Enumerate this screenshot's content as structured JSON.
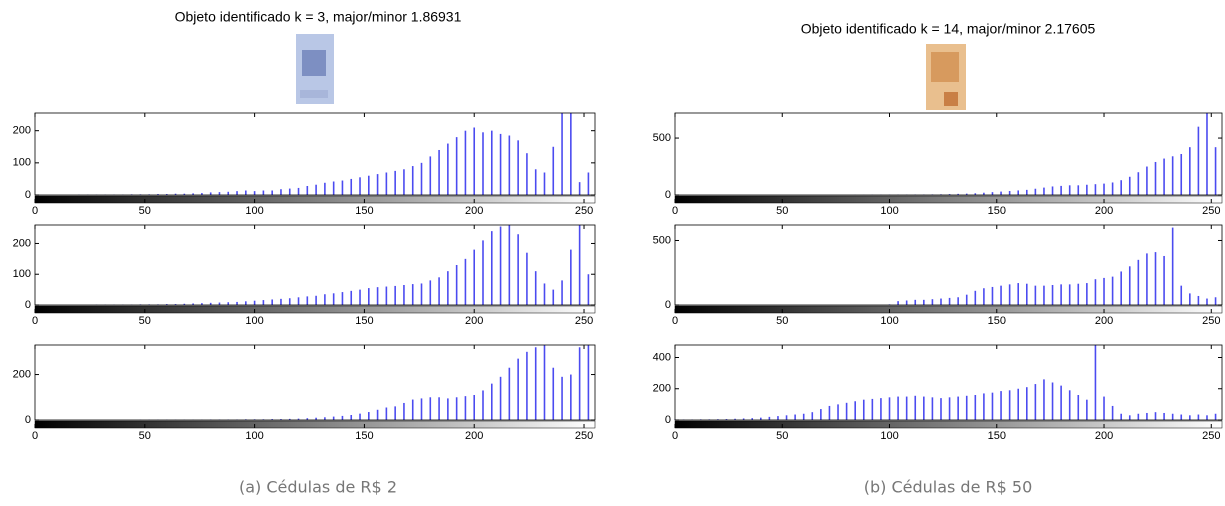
{
  "chart_data": [
    {
      "type": "stem",
      "title": "Objeto identificado k = 3, major/minor 1.86931",
      "color": "#4b4bf0",
      "xlim": [
        0,
        255
      ],
      "ylim": [
        0,
        255
      ],
      "xticks": [
        0,
        50,
        100,
        150,
        200,
        250
      ],
      "yticks": [
        0,
        100,
        200
      ],
      "x": [
        0,
        4,
        8,
        12,
        16,
        20,
        24,
        28,
        32,
        36,
        40,
        44,
        48,
        52,
        56,
        60,
        64,
        68,
        72,
        76,
        80,
        84,
        88,
        92,
        96,
        100,
        104,
        108,
        112,
        116,
        120,
        124,
        128,
        132,
        136,
        140,
        144,
        148,
        152,
        156,
        160,
        164,
        168,
        172,
        176,
        180,
        184,
        188,
        192,
        196,
        200,
        204,
        208,
        212,
        216,
        220,
        224,
        228,
        232,
        236,
        240,
        244,
        248,
        252
      ],
      "values": [
        0,
        0,
        0,
        0,
        0,
        1,
        1,
        1,
        1,
        1,
        1,
        2,
        2,
        2,
        3,
        3,
        4,
        4,
        5,
        6,
        8,
        9,
        10,
        12,
        14,
        12,
        14,
        14,
        18,
        20,
        22,
        28,
        32,
        38,
        42,
        45,
        50,
        55,
        60,
        65,
        70,
        75,
        80,
        90,
        100,
        120,
        140,
        160,
        180,
        200,
        210,
        195,
        200,
        190,
        185,
        170,
        130,
        80,
        70,
        150,
        255,
        255,
        40,
        70
      ]
    },
    {
      "type": "stem",
      "color": "#4b4bf0",
      "xlim": [
        0,
        255
      ],
      "ylim": [
        0,
        260
      ],
      "xticks": [
        0,
        50,
        100,
        150,
        200,
        250
      ],
      "yticks": [
        0,
        100,
        200
      ],
      "x": [
        0,
        4,
        8,
        12,
        16,
        20,
        24,
        28,
        32,
        36,
        40,
        44,
        48,
        52,
        56,
        60,
        64,
        68,
        72,
        76,
        80,
        84,
        88,
        92,
        96,
        100,
        104,
        108,
        112,
        116,
        120,
        124,
        128,
        132,
        136,
        140,
        144,
        148,
        152,
        156,
        160,
        164,
        168,
        172,
        176,
        180,
        184,
        188,
        192,
        196,
        200,
        204,
        208,
        212,
        216,
        220,
        224,
        228,
        232,
        236,
        240,
        244,
        248,
        252
      ],
      "values": [
        0,
        0,
        0,
        0,
        0,
        0,
        0,
        1,
        1,
        1,
        1,
        1,
        2,
        2,
        2,
        3,
        3,
        4,
        5,
        6,
        7,
        8,
        9,
        10,
        12,
        14,
        16,
        18,
        20,
        22,
        25,
        28,
        30,
        35,
        38,
        42,
        46,
        50,
        55,
        58,
        60,
        62,
        65,
        68,
        70,
        80,
        90,
        110,
        130,
        150,
        180,
        210,
        240,
        255,
        260,
        230,
        170,
        110,
        70,
        50,
        80,
        180,
        260,
        100
      ]
    },
    {
      "type": "stem",
      "color": "#4b4bf0",
      "xlim": [
        0,
        255
      ],
      "ylim": [
        0,
        330
      ],
      "xticks": [
        0,
        50,
        100,
        150,
        200,
        250
      ],
      "yticks": [
        0,
        200
      ],
      "x": [
        0,
        4,
        8,
        12,
        16,
        20,
        24,
        28,
        32,
        36,
        40,
        44,
        48,
        52,
        56,
        60,
        64,
        68,
        72,
        76,
        80,
        84,
        88,
        92,
        96,
        100,
        104,
        108,
        112,
        116,
        120,
        124,
        128,
        132,
        136,
        140,
        144,
        148,
        152,
        156,
        160,
        164,
        168,
        172,
        176,
        180,
        184,
        188,
        192,
        196,
        200,
        204,
        208,
        212,
        216,
        220,
        224,
        228,
        232,
        236,
        240,
        244,
        248,
        252
      ],
      "values": [
        0,
        0,
        0,
        0,
        0,
        0,
        0,
        0,
        0,
        0,
        0,
        0,
        1,
        1,
        1,
        1,
        1,
        1,
        1,
        1,
        2,
        2,
        2,
        2,
        3,
        3,
        3,
        4,
        4,
        5,
        6,
        8,
        10,
        12,
        15,
        18,
        22,
        28,
        35,
        45,
        55,
        60,
        75,
        90,
        95,
        100,
        100,
        95,
        100,
        105,
        110,
        130,
        160,
        190,
        230,
        270,
        300,
        320,
        330,
        230,
        190,
        200,
        320,
        330
      ]
    },
    {
      "type": "stem",
      "title": "Objeto identificado k = 14, major/minor 2.17605",
      "color": "#4b4bf0",
      "xlim": [
        0,
        255
      ],
      "ylim": [
        0,
        720
      ],
      "xticks": [
        0,
        50,
        100,
        150,
        200,
        250
      ],
      "yticks": [
        0,
        500
      ],
      "x": [
        0,
        4,
        8,
        12,
        16,
        20,
        24,
        28,
        32,
        36,
        40,
        44,
        48,
        52,
        56,
        60,
        64,
        68,
        72,
        76,
        80,
        84,
        88,
        92,
        96,
        100,
        104,
        108,
        112,
        116,
        120,
        124,
        128,
        132,
        136,
        140,
        144,
        148,
        152,
        156,
        160,
        164,
        168,
        172,
        176,
        180,
        184,
        188,
        192,
        196,
        200,
        204,
        208,
        212,
        216,
        220,
        224,
        228,
        232,
        236,
        240,
        244,
        248,
        252
      ],
      "values": [
        0,
        0,
        0,
        0,
        0,
        0,
        0,
        0,
        0,
        0,
        0,
        0,
        0,
        0,
        0,
        0,
        0,
        0,
        0,
        0,
        0,
        1,
        1,
        2,
        2,
        3,
        3,
        3,
        4,
        4,
        5,
        6,
        8,
        10,
        12,
        15,
        20,
        25,
        30,
        35,
        40,
        45,
        55,
        65,
        75,
        80,
        85,
        85,
        90,
        95,
        100,
        110,
        130,
        160,
        200,
        250,
        290,
        320,
        340,
        360,
        420,
        600,
        720,
        420
      ]
    },
    {
      "type": "stem",
      "color": "#4b4bf0",
      "xlim": [
        0,
        255
      ],
      "ylim": [
        0,
        620
      ],
      "xticks": [
        0,
        50,
        100,
        150,
        200,
        250
      ],
      "yticks": [
        0,
        500
      ],
      "x": [
        0,
        4,
        8,
        12,
        16,
        20,
        24,
        28,
        32,
        36,
        40,
        44,
        48,
        52,
        56,
        60,
        64,
        68,
        72,
        76,
        80,
        84,
        88,
        92,
        96,
        100,
        104,
        108,
        112,
        116,
        120,
        124,
        128,
        132,
        136,
        140,
        144,
        148,
        152,
        156,
        160,
        164,
        168,
        172,
        176,
        180,
        184,
        188,
        192,
        196,
        200,
        204,
        208,
        212,
        216,
        220,
        224,
        228,
        232,
        236,
        240,
        244,
        248,
        252
      ],
      "values": [
        0,
        0,
        0,
        0,
        0,
        0,
        0,
        0,
        0,
        0,
        0,
        0,
        0,
        0,
        0,
        0,
        0,
        0,
        0,
        0,
        0,
        0,
        0,
        0,
        0,
        5,
        30,
        35,
        40,
        40,
        45,
        50,
        55,
        60,
        80,
        110,
        130,
        140,
        150,
        160,
        170,
        165,
        150,
        150,
        155,
        160,
        160,
        165,
        170,
        200,
        210,
        220,
        260,
        300,
        350,
        400,
        410,
        380,
        600,
        150,
        90,
        70,
        50,
        60
      ]
    },
    {
      "type": "stem",
      "color": "#4b4bf0",
      "xlim": [
        0,
        255
      ],
      "ylim": [
        0,
        480
      ],
      "xticks": [
        0,
        50,
        100,
        150,
        200,
        250
      ],
      "yticks": [
        0,
        200,
        400
      ],
      "x": [
        0,
        4,
        8,
        12,
        16,
        20,
        24,
        28,
        32,
        36,
        40,
        44,
        48,
        52,
        56,
        60,
        64,
        68,
        72,
        76,
        80,
        84,
        88,
        92,
        96,
        100,
        104,
        108,
        112,
        116,
        120,
        124,
        128,
        132,
        136,
        140,
        144,
        148,
        152,
        156,
        160,
        164,
        168,
        172,
        176,
        180,
        184,
        188,
        192,
        196,
        200,
        204,
        208,
        212,
        216,
        220,
        224,
        228,
        232,
        236,
        240,
        244,
        248,
        252
      ],
      "values": [
        2,
        3,
        3,
        4,
        4,
        5,
        6,
        8,
        10,
        12,
        15,
        20,
        25,
        30,
        35,
        40,
        50,
        70,
        90,
        100,
        110,
        120,
        130,
        135,
        140,
        145,
        150,
        150,
        155,
        150,
        145,
        140,
        145,
        150,
        155,
        160,
        170,
        175,
        185,
        190,
        200,
        210,
        230,
        260,
        240,
        220,
        190,
        160,
        130,
        480,
        150,
        90,
        40,
        30,
        40,
        45,
        50,
        45,
        40,
        35,
        30,
        35,
        30,
        40
      ]
    }
  ],
  "captions": [
    "(a) Cédulas de R$ 2",
    "(b) Cédulas de R$ 50"
  ]
}
